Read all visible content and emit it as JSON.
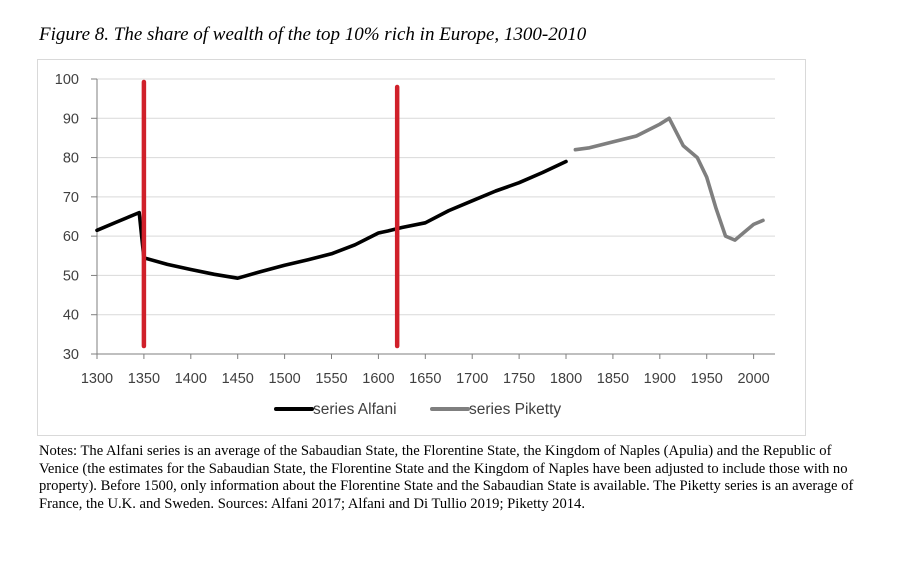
{
  "figure": {
    "title": "Figure 8. The share of wealth of the top 10% rich in Europe, 1300-2010",
    "notes": "Notes: The Alfani series is an average of the Sabaudian State, the Florentine State, the Kingdom of Naples (Apulia) and the Republic of Venice (the estimates for the Sabaudian State, the Florentine State and the Kingdom of Naples have been adjusted to include those with no property). Before 1500, only information about the Florentine State and the Sabaudian State is available. The Piketty series is an average of France, the U.K. and Sweden. Sources: Alfani 2017; Alfani and Di Tullio 2019; Piketty 2014."
  },
  "chart_data": {
    "type": "line",
    "title": "The share of wealth of the top 10% rich in Europe, 1300-2010",
    "xlabel": "",
    "ylabel": "",
    "xlim": [
      1300,
      2010
    ],
    "ylim": [
      30,
      100
    ],
    "x_ticks": [
      1300,
      1350,
      1400,
      1450,
      1500,
      1550,
      1600,
      1650,
      1700,
      1750,
      1800,
      1850,
      1900,
      1950,
      2000
    ],
    "y_ticks": [
      30,
      40,
      50,
      60,
      70,
      80,
      90,
      100
    ],
    "grid": true,
    "legend_position": "bottom",
    "series": [
      {
        "name": "series Alfani",
        "color": "#000000",
        "x": [
          1300,
          1320,
          1345,
          1350,
          1375,
          1400,
          1425,
          1450,
          1475,
          1500,
          1525,
          1550,
          1575,
          1600,
          1610,
          1625,
          1650,
          1675,
          1700,
          1725,
          1750,
          1775,
          1800
        ],
        "y": [
          61.5,
          63.5,
          66,
          54.5,
          52.8,
          51.5,
          50.3,
          49.3,
          51,
          52.6,
          54,
          55.5,
          57.8,
          60.8,
          61.3,
          62.2,
          63.4,
          66.5,
          69,
          71.5,
          73.6,
          76.2,
          79
        ]
      },
      {
        "name": "series Piketty",
        "color": "#7f7f7f",
        "x": [
          1810,
          1825,
          1850,
          1875,
          1900,
          1910,
          1925,
          1940,
          1950,
          1960,
          1970,
          1980,
          1990,
          2000,
          2010
        ],
        "y": [
          82,
          82.5,
          84,
          85.5,
          88.5,
          90,
          83,
          80,
          75,
          67,
          60,
          59,
          61,
          63,
          64
        ]
      }
    ],
    "annotations": [
      {
        "type": "vertical-line",
        "x": 1350,
        "color": "#d0202a"
      },
      {
        "type": "vertical-line",
        "x": 1620,
        "color": "#d0202a"
      }
    ]
  }
}
